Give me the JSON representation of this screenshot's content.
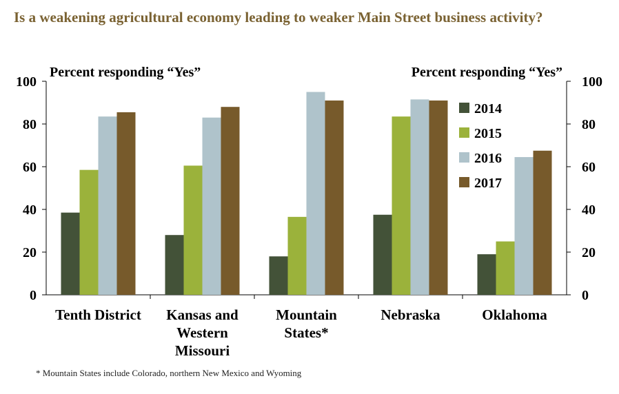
{
  "title": "Is a weakening agricultural economy leading to weaker Main Street business activity?",
  "footnote": "* Mountain States include Colorado, northern New Mexico and Wyoming",
  "colors": {
    "2014": "#435238",
    "2015": "#9bb23b",
    "2016": "#afc3cb",
    "2017": "#775a2b",
    "title": "#7a6232"
  },
  "chart_data": {
    "type": "bar",
    "title": "Is a weakening agricultural economy leading to weaker Main Street business activity?",
    "ylabel_left": "Percent responding “Yes”",
    "ylabel_right": "Percent responding “Yes”",
    "ylim": [
      0,
      100
    ],
    "yticks": [
      "0",
      "20",
      "40",
      "60",
      "80",
      "100"
    ],
    "grid": false,
    "legend_position": "inside-top-right",
    "categories": [
      [
        "Tenth District"
      ],
      [
        "Kansas and",
        "Western",
        "Missouri"
      ],
      [
        "Mountain",
        "States*"
      ],
      [
        "Nebraska"
      ],
      [
        "Oklahoma"
      ]
    ],
    "series": [
      {
        "name": "2014",
        "values": [
          38.5,
          28,
          18,
          37.5,
          19
        ]
      },
      {
        "name": "2015",
        "values": [
          58.5,
          60.5,
          36.5,
          83.5,
          25
        ]
      },
      {
        "name": "2016",
        "values": [
          83.5,
          83,
          95,
          91.5,
          64.5
        ]
      },
      {
        "name": "2017",
        "values": [
          85.5,
          88,
          91,
          91,
          67.5
        ]
      }
    ]
  }
}
